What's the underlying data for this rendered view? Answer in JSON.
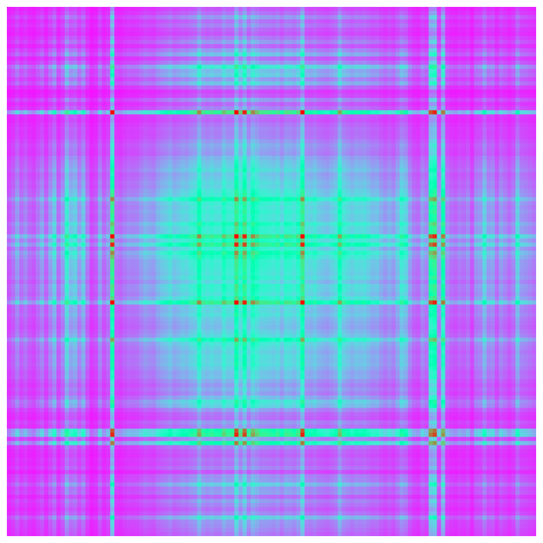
{
  "chart_data": {
    "type": "heatmap",
    "colormap": "rainbow",
    "symmetric": true,
    "grid": false,
    "axes_visible": false,
    "title": "",
    "xlabel": "",
    "ylabel": "",
    "n": 128,
    "value_range": [
      0,
      1
    ],
    "profile": [
      0.15,
      0.2,
      0.3,
      0.2,
      0.25,
      0.18,
      0.15,
      0.22,
      0.3,
      0.18,
      0.3,
      0.42,
      0.2,
      0.3,
      0.58,
      0.4,
      0.45,
      0.3,
      0.42,
      0.22,
      0.12,
      0.15,
      0.3,
      0.18,
      0.25,
      0.3,
      0.2,
      0.18,
      0.22,
      0.25,
      0.24,
      0.25,
      0.3,
      0.35,
      0.32,
      0.3,
      0.38,
      0.42,
      0.45,
      0.5,
      0.42,
      0.45,
      0.5,
      0.48,
      0.55,
      0.58,
      0.8,
      0.6,
      0.55,
      0.6,
      0.55,
      0.55,
      0.7,
      0.6,
      0.6,
      1.0,
      0.68,
      0.65,
      0.6,
      0.8,
      0.7,
      0.6,
      0.6,
      0.58,
      0.55,
      0.6,
      0.5,
      0.62,
      0.6,
      0.55,
      0.65,
      0.58,
      0.5,
      0.48,
      0.52,
      0.45,
      0.42,
      0.4,
      0.45,
      0.5,
      0.75,
      0.55,
      0.5,
      0.45,
      0.5,
      0.48,
      0.5,
      0.45,
      0.4,
      0.42,
      0.35,
      0.3,
      0.35,
      0.3,
      0.4,
      0.55,
      0.48,
      0.3,
      0.22,
      0.2,
      0.3,
      0.25,
      0.88,
      0.48,
      0.3,
      0.82,
      0.25,
      0.2,
      0.18,
      0.22,
      0.2,
      0.25,
      0.15,
      0.28,
      0.3,
      0.45,
      0.3,
      0.32,
      0.2,
      0.3,
      0.25,
      0.2,
      0.25,
      0.45,
      0.3,
      0.28,
      0.25,
      0.22
    ],
    "spikes": [
      {
        "index": 25,
        "value": 1.0
      },
      {
        "index": 71,
        "value": 1.0
      },
      {
        "index": 57,
        "value": 0.95
      },
      {
        "index": 103,
        "value": 0.95
      }
    ]
  }
}
